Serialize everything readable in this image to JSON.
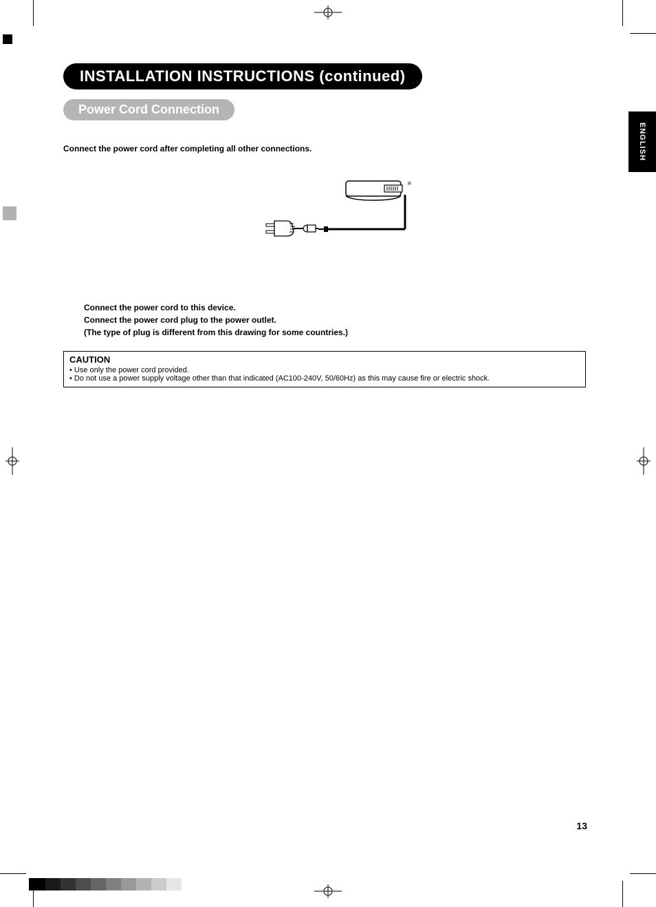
{
  "page": {
    "title": "INSTALLATION INSTRUCTIONS (continued)",
    "subtitle": "Power Cord Connection",
    "intro": "Connect the power cord after completing all other connections.",
    "instruction_line1": "Connect the power cord to this device.",
    "instruction_line2": "Connect the power cord plug to the power outlet.",
    "instruction_line3": "(The type of plug is different from this drawing for some countries.)",
    "page_number": "13",
    "language_tab": "ENGLISH"
  },
  "caution": {
    "title": "CAUTION",
    "items": [
      "Use only the power cord provided.",
      "Do not use a power supply voltage other than that indicated (AC100-240V, 50/60Hz) as this may cause fire or electric shock."
    ]
  },
  "diagram": {
    "cable_color": "#000000",
    "plug_label_r": "R"
  },
  "crop_marks": {
    "color": "#000000",
    "grey_block": "#b0b0b0"
  },
  "color_bar": {
    "swatches": [
      "#000000",
      "#1a1a1a",
      "#333333",
      "#4d4d4d",
      "#666666",
      "#808080",
      "#999999",
      "#b3b3b3",
      "#cccccc",
      "#e6e6e6"
    ]
  }
}
